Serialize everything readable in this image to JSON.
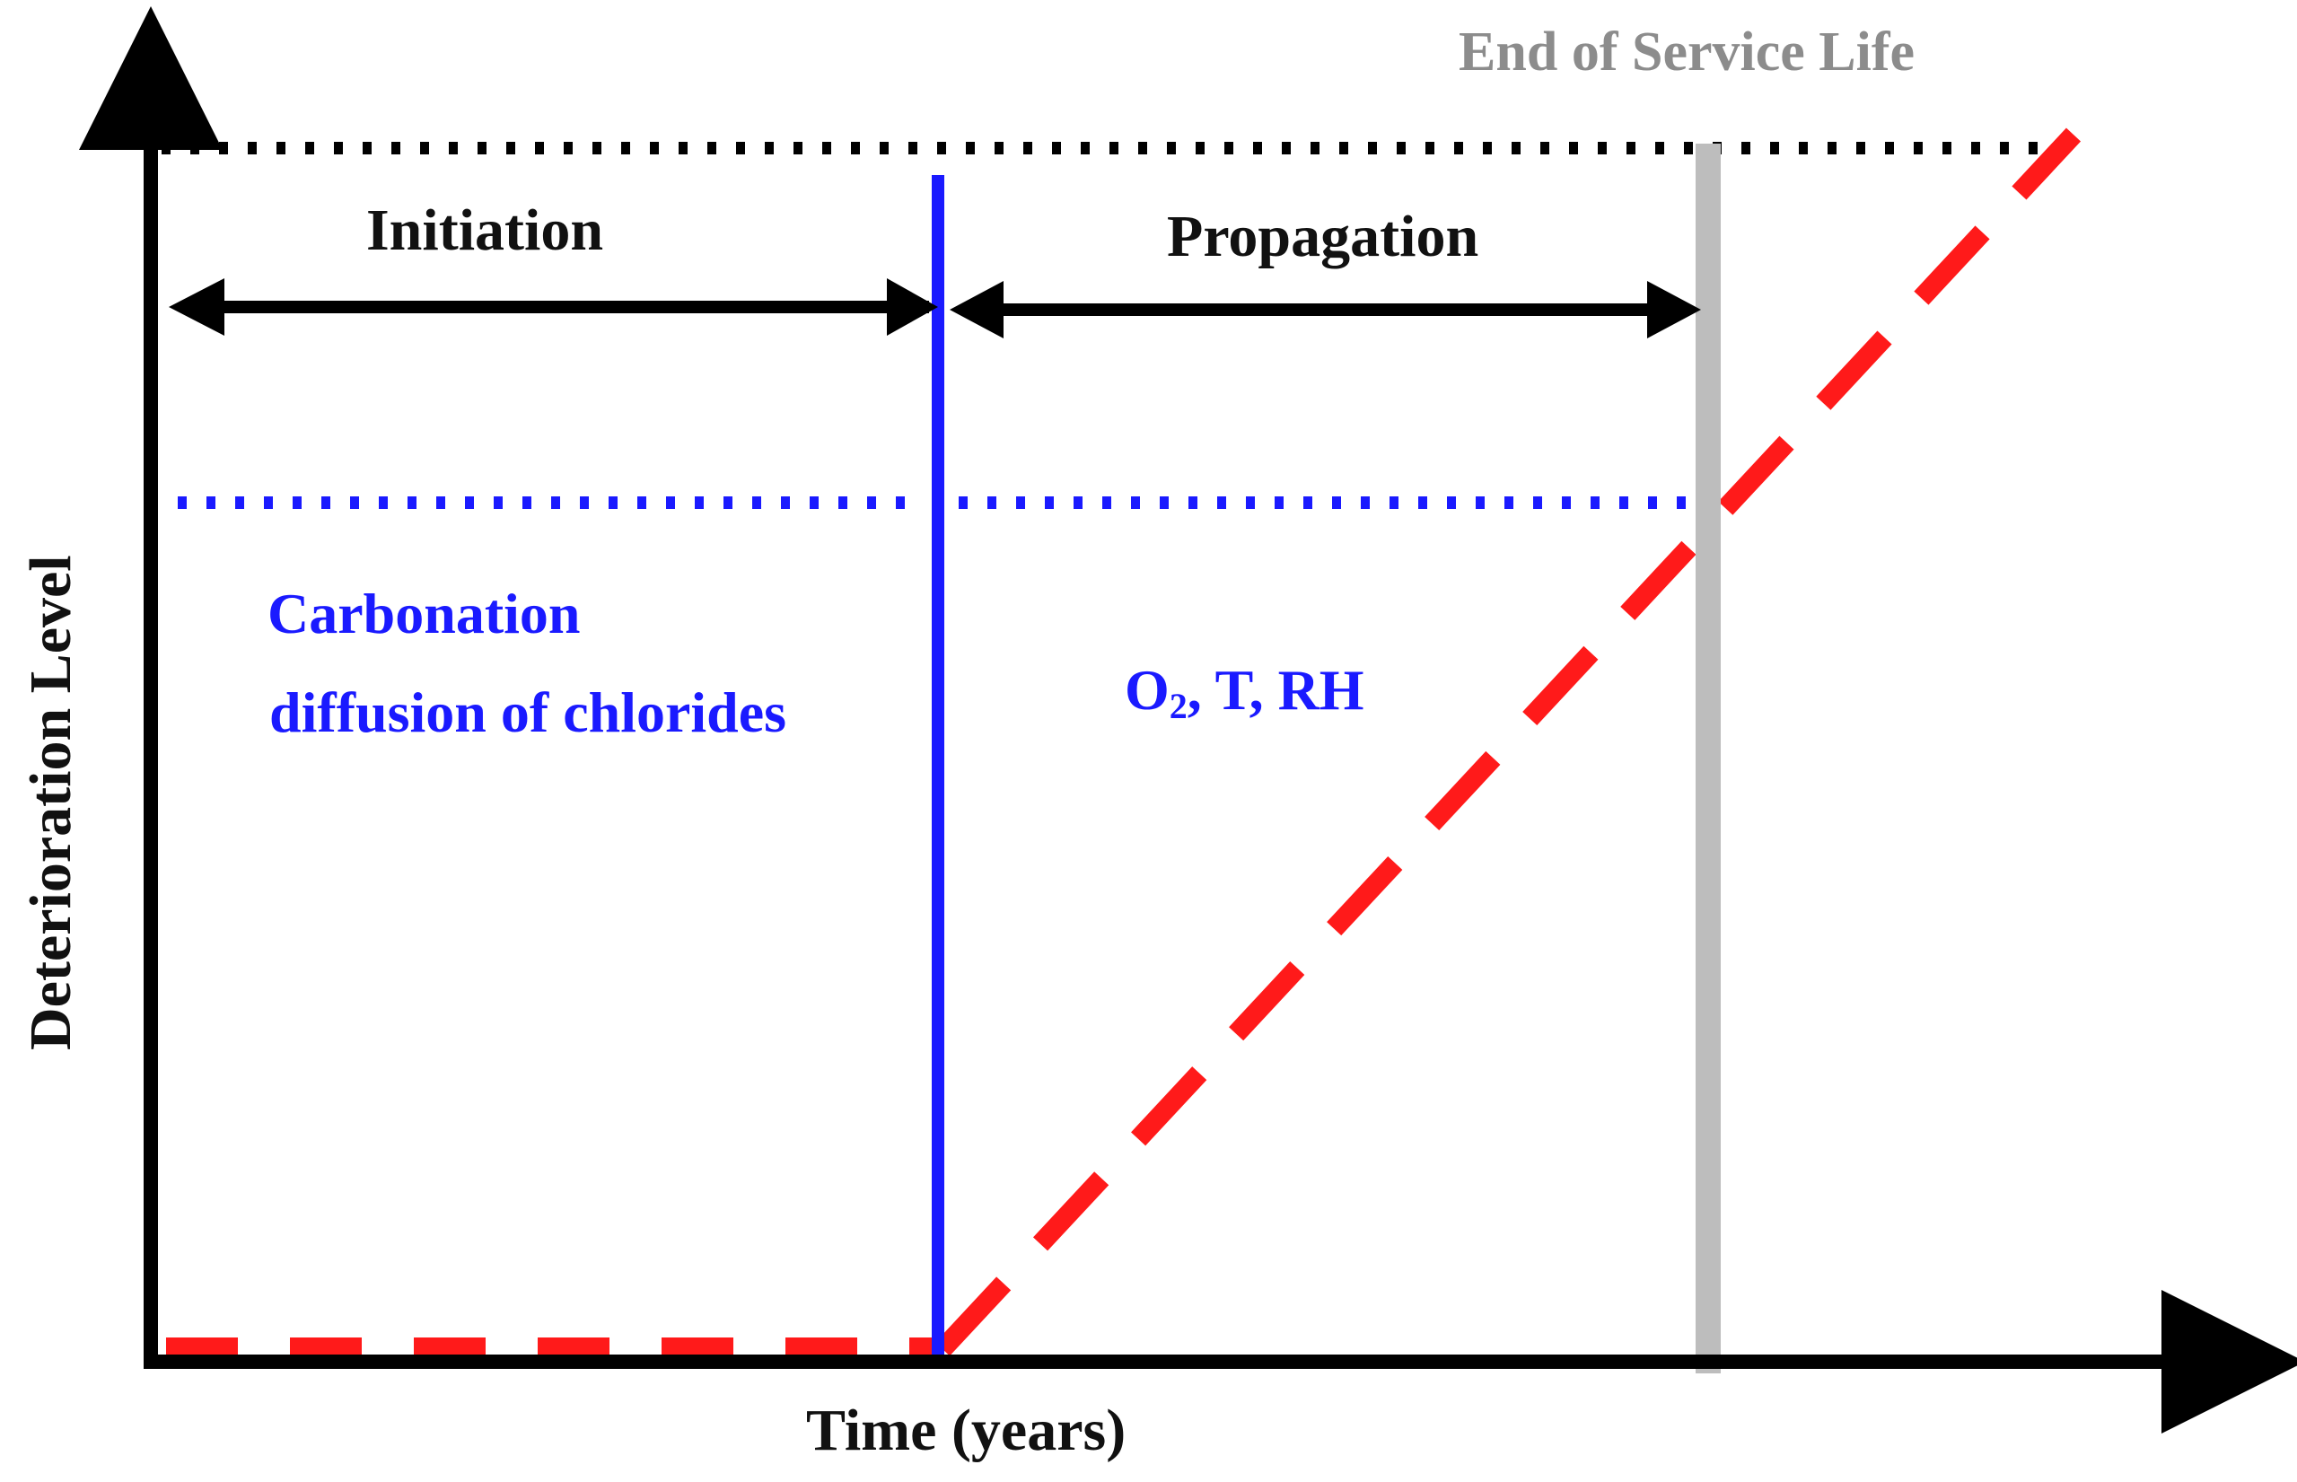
{
  "diagram": {
    "labels": {
      "end_of_service_life": "End of Service Life",
      "initiation": "Initiation",
      "propagation": "Propagation",
      "initiation_factor_line1": "Carbonation",
      "initiation_factor_line2": "diffusion of chlorides",
      "propagation_factors_o": "O",
      "propagation_factors_sub": "2",
      "propagation_factors_rest": ", T, RH",
      "y_axis": "Deterioration Level",
      "x_axis": "Time (years)"
    },
    "colors": {
      "axis": "#000000",
      "service_life_limit": "#000000",
      "phase_boundary": "#1a1aff",
      "threshold_line": "#1a1aff",
      "end_of_life_marker": "#bdbdbd",
      "deterioration_curve": "#ff1a1a",
      "text_dark": "#111111",
      "text_blue": "#1a1aff",
      "text_gray": "#8c8c8c"
    }
  }
}
